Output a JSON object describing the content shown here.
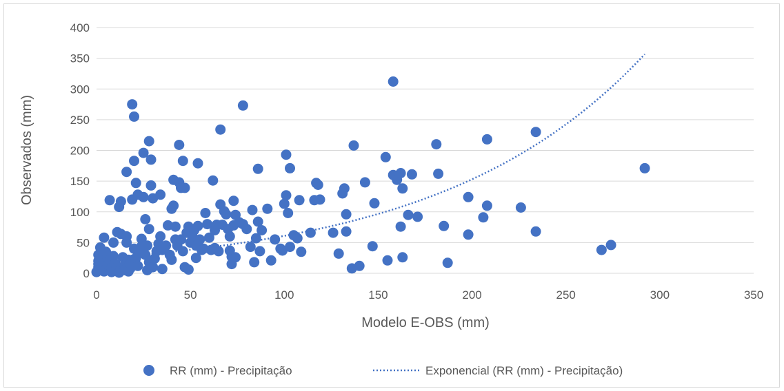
{
  "chart_data": {
    "type": "scatter",
    "xlabel": "Modelo E-OBS (mm)",
    "ylabel": "Observados (mm)",
    "xlim": [
      0,
      350
    ],
    "ylim": [
      0,
      400
    ],
    "xticks": [
      "0",
      "50",
      "100",
      "150",
      "200",
      "250",
      "300",
      "350"
    ],
    "yticks": [
      "0",
      "50",
      "100",
      "150",
      "200",
      "250",
      "300",
      "350",
      "400"
    ],
    "grid": "horizontal",
    "legend_position": "bottom",
    "colors": {
      "points": "#4472c4",
      "trendline": "#4472c4",
      "grid": "#d9d9d9",
      "text": "#595959"
    },
    "series": [
      {
        "name": "RR (mm) - Precipitação",
        "kind": "scatter",
        "points": [
          [
            0,
            2
          ],
          [
            1,
            5
          ],
          [
            1,
            10
          ],
          [
            1,
            15
          ],
          [
            1,
            20
          ],
          [
            1,
            30
          ],
          [
            2,
            42
          ],
          [
            2,
            8
          ],
          [
            3,
            12
          ],
          [
            3,
            25
          ],
          [
            4,
            58
          ],
          [
            4,
            3
          ],
          [
            5,
            18
          ],
          [
            5,
            35
          ],
          [
            6,
            6
          ],
          [
            6,
            14
          ],
          [
            7,
            119
          ],
          [
            7,
            22
          ],
          [
            8,
            2
          ],
          [
            8,
            9
          ],
          [
            9,
            50
          ],
          [
            9,
            28
          ],
          [
            10,
            4
          ],
          [
            10,
            16
          ],
          [
            11,
            67
          ],
          [
            11,
            11
          ],
          [
            12,
            108
          ],
          [
            12,
            1
          ],
          [
            13,
            117
          ],
          [
            13,
            64
          ],
          [
            13,
            7
          ],
          [
            14,
            26
          ],
          [
            15,
            13
          ],
          [
            15,
            5
          ],
          [
            16,
            165
          ],
          [
            16,
            60
          ],
          [
            16,
            50
          ],
          [
            17,
            3
          ],
          [
            17,
            22
          ],
          [
            18,
            8
          ],
          [
            18,
            15
          ],
          [
            19,
            120
          ],
          [
            19,
            275
          ],
          [
            20,
            255
          ],
          [
            20,
            183
          ],
          [
            20,
            40
          ],
          [
            21,
            147
          ],
          [
            21,
            25
          ],
          [
            22,
            128
          ],
          [
            22,
            12
          ],
          [
            23,
            37
          ],
          [
            24,
            44
          ],
          [
            24,
            56
          ],
          [
            25,
            196
          ],
          [
            25,
            124
          ],
          [
            26,
            30
          ],
          [
            26,
            88
          ],
          [
            27,
            5
          ],
          [
            27,
            45
          ],
          [
            28,
            215
          ],
          [
            28,
            72
          ],
          [
            28,
            18
          ],
          [
            29,
            185
          ],
          [
            29,
            143
          ],
          [
            30,
            122
          ],
          [
            30,
            10
          ],
          [
            31,
            24
          ],
          [
            32,
            36
          ],
          [
            33,
            48
          ],
          [
            34,
            128
          ],
          [
            34,
            60
          ],
          [
            35,
            7
          ],
          [
            35,
            38
          ],
          [
            36,
            41
          ],
          [
            37,
            45
          ],
          [
            38,
            78
          ],
          [
            39,
            30
          ],
          [
            40,
            22
          ],
          [
            40,
            105
          ],
          [
            41,
            152
          ],
          [
            41,
            110
          ],
          [
            42,
            76
          ],
          [
            42,
            55
          ],
          [
            43,
            45
          ],
          [
            44,
            209
          ],
          [
            44,
            148
          ],
          [
            45,
            55
          ],
          [
            45,
            139
          ],
          [
            46,
            36
          ],
          [
            46,
            183
          ],
          [
            47,
            10
          ],
          [
            47,
            139
          ],
          [
            48,
            66
          ],
          [
            49,
            6
          ],
          [
            49,
            76
          ],
          [
            50,
            50
          ],
          [
            51,
            60
          ],
          [
            52,
            70
          ],
          [
            53,
            25
          ],
          [
            53,
            45
          ],
          [
            54,
            179
          ],
          [
            54,
            77
          ],
          [
            55,
            55
          ],
          [
            56,
            38
          ],
          [
            57,
            40
          ],
          [
            58,
            98
          ],
          [
            59,
            80
          ],
          [
            60,
            58
          ],
          [
            61,
            38
          ],
          [
            62,
            151
          ],
          [
            63,
            41
          ],
          [
            63,
            70
          ],
          [
            64,
            79
          ],
          [
            65,
            36
          ],
          [
            66,
            234
          ],
          [
            66,
            112
          ],
          [
            67,
            79
          ],
          [
            68,
            101
          ],
          [
            69,
            96
          ],
          [
            70,
            72
          ],
          [
            71,
            60
          ],
          [
            71,
            37
          ],
          [
            72,
            15
          ],
          [
            72,
            27
          ],
          [
            73,
            118
          ],
          [
            73,
            78
          ],
          [
            74,
            95
          ],
          [
            74,
            26
          ],
          [
            76,
            83
          ],
          [
            78,
            273
          ],
          [
            78,
            80
          ],
          [
            80,
            72
          ],
          [
            82,
            43
          ],
          [
            83,
            103
          ],
          [
            84,
            18
          ],
          [
            85,
            57
          ],
          [
            86,
            170
          ],
          [
            86,
            84
          ],
          [
            87,
            36
          ],
          [
            88,
            70
          ],
          [
            91,
            105
          ],
          [
            93,
            21
          ],
          [
            95,
            55
          ],
          [
            98,
            40
          ],
          [
            99,
            37
          ],
          [
            100,
            113
          ],
          [
            101,
            193
          ],
          [
            101,
            127
          ],
          [
            102,
            98
          ],
          [
            103,
            171
          ],
          [
            103,
            43
          ],
          [
            105,
            62
          ],
          [
            107,
            57
          ],
          [
            108,
            119
          ],
          [
            109,
            35
          ],
          [
            114,
            66
          ],
          [
            116,
            119
          ],
          [
            117,
            147
          ],
          [
            118,
            144
          ],
          [
            119,
            120
          ],
          [
            126,
            66
          ],
          [
            129,
            32
          ],
          [
            131,
            130
          ],
          [
            132,
            138
          ],
          [
            133,
            96
          ],
          [
            133,
            68
          ],
          [
            136,
            8
          ],
          [
            137,
            208
          ],
          [
            140,
            12
          ],
          [
            143,
            148
          ],
          [
            147,
            44
          ],
          [
            148,
            114
          ],
          [
            154,
            189
          ],
          [
            155,
            21
          ],
          [
            158,
            312
          ],
          [
            158,
            160
          ],
          [
            160,
            152
          ],
          [
            162,
            163
          ],
          [
            162,
            76
          ],
          [
            163,
            26
          ],
          [
            163,
            138
          ],
          [
            166,
            95
          ],
          [
            168,
            161
          ],
          [
            171,
            92
          ],
          [
            181,
            210
          ],
          [
            182,
            162
          ],
          [
            185,
            77
          ],
          [
            187,
            17
          ],
          [
            198,
            63
          ],
          [
            198,
            124
          ],
          [
            206,
            91
          ],
          [
            208,
            110
          ],
          [
            208,
            218
          ],
          [
            226,
            107
          ],
          [
            234,
            230
          ],
          [
            234,
            68
          ],
          [
            269,
            38
          ],
          [
            274,
            46
          ],
          [
            292,
            171
          ]
        ]
      },
      {
        "name": "Exponencial (RR (mm) - Precipitação)",
        "kind": "trendline",
        "model": "exponential",
        "a": 24.3,
        "b": 0.0092,
        "x_range": [
          0,
          292
        ]
      }
    ]
  }
}
